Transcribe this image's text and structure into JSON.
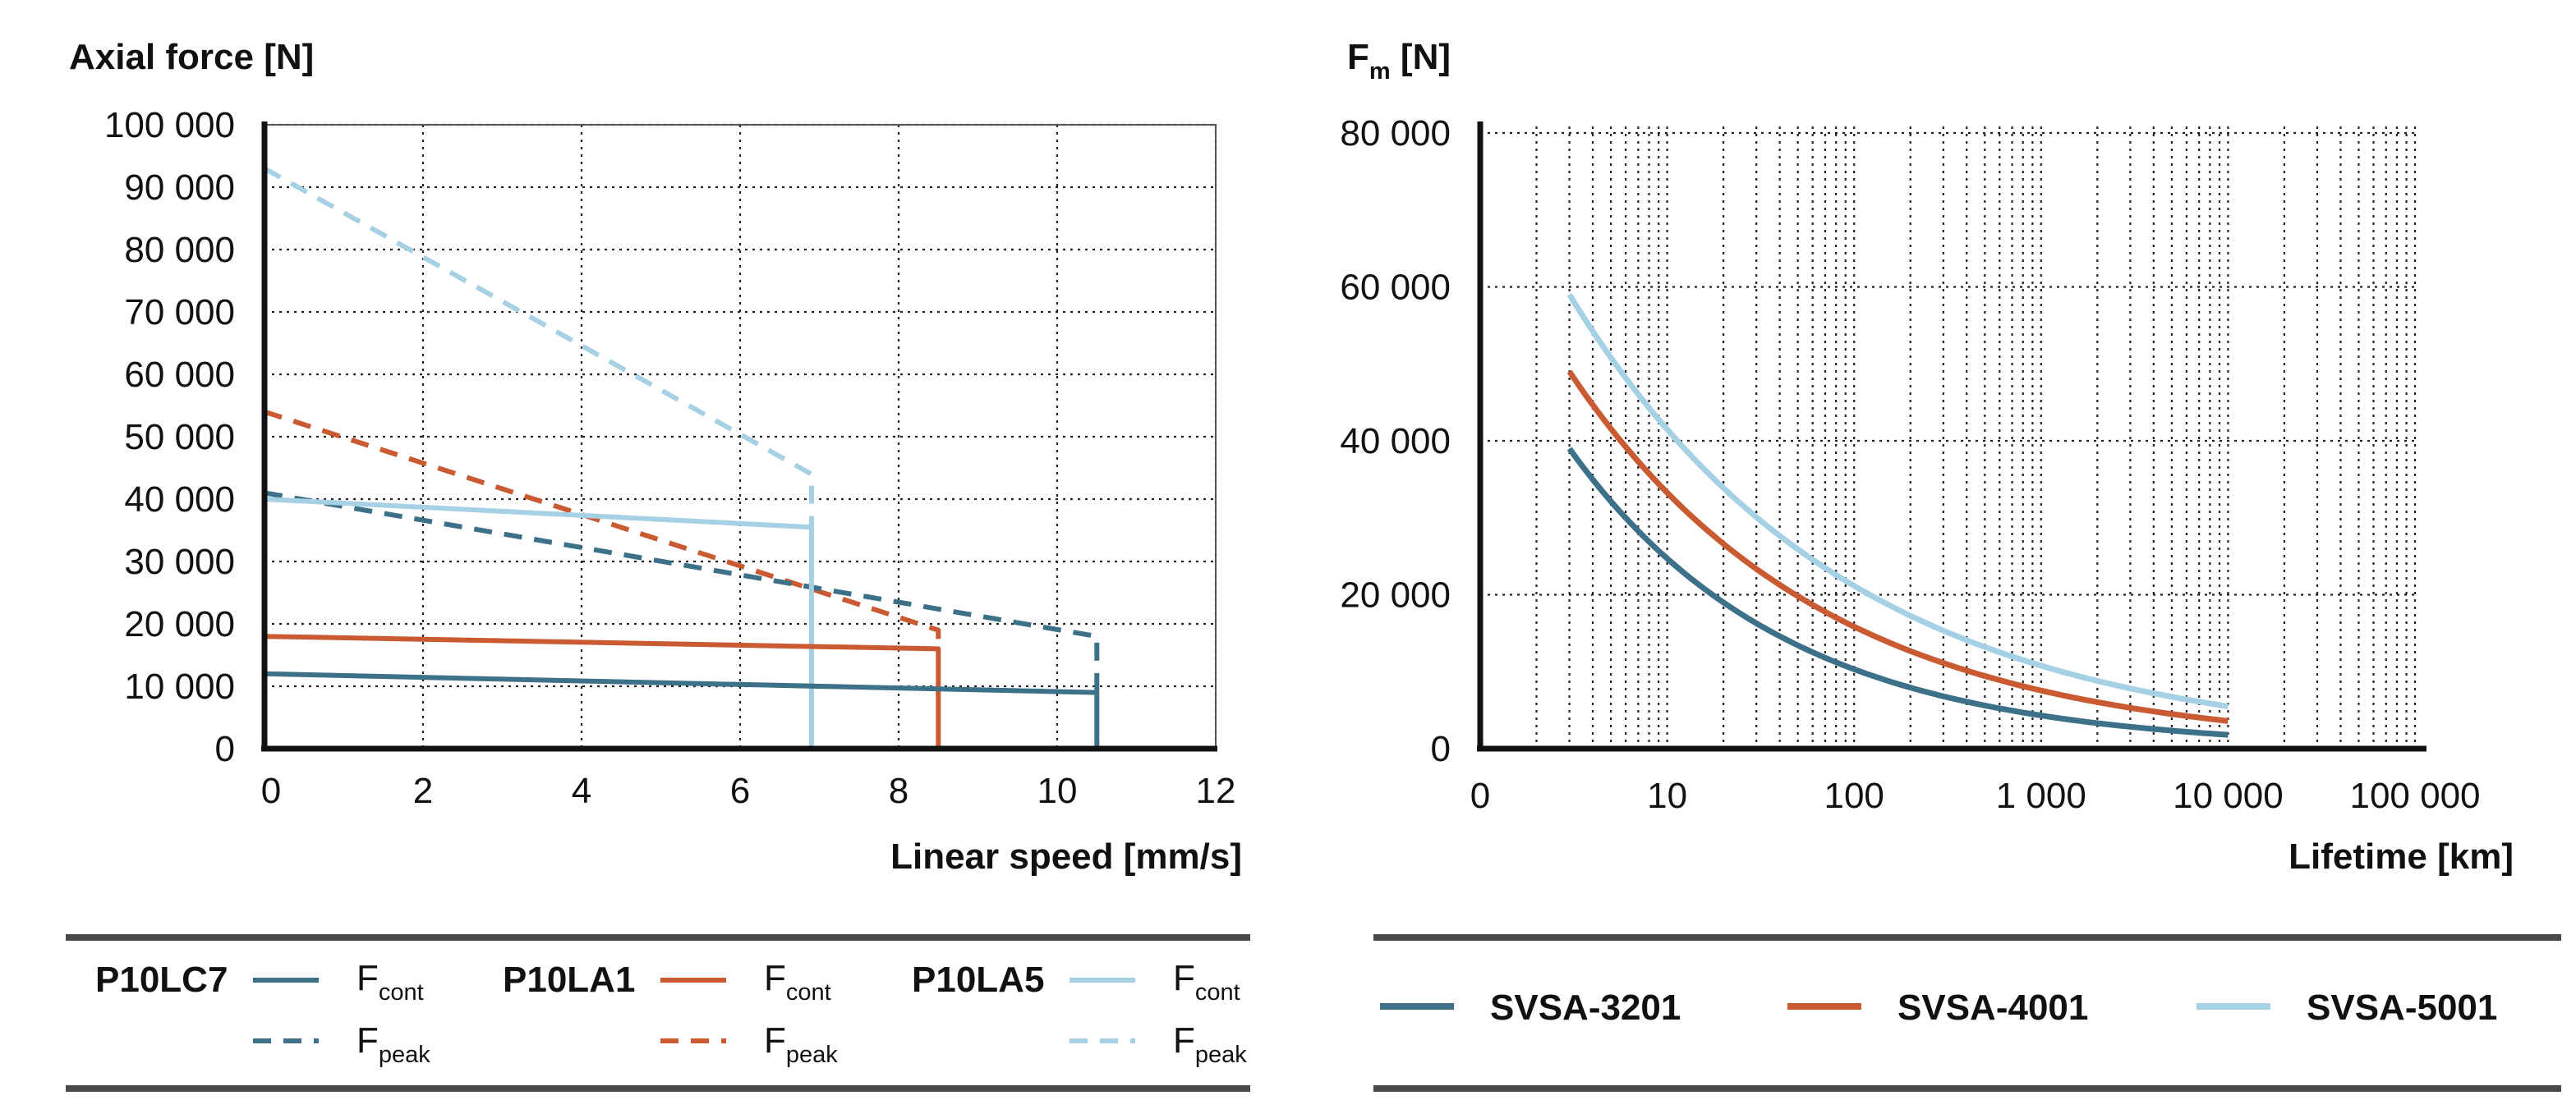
{
  "left_chart": {
    "title": "Axial force [N]",
    "xlabel": "Linear speed [mm/s]",
    "x_ticks": [
      "0",
      "2",
      "4",
      "6",
      "8",
      "10",
      "12"
    ],
    "y_ticks": [
      "0",
      "10 000",
      "20 000",
      "30 000",
      "40 000",
      "50 000",
      "60 000",
      "70 000",
      "80 000",
      "90 000",
      "100 000"
    ],
    "legend": [
      {
        "group": "P10LC7",
        "cont_main": "F",
        "cont_sub": "cont",
        "peak_main": "F",
        "peak_sub": "peak"
      },
      {
        "group": "P10LA1",
        "cont_main": "F",
        "cont_sub": "cont",
        "peak_main": "F",
        "peak_sub": "peak"
      },
      {
        "group": "P10LA5",
        "cont_main": "F",
        "cont_sub": "cont",
        "peak_main": "F",
        "peak_sub": "peak"
      }
    ]
  },
  "right_chart": {
    "title_main": "F",
    "title_sub": "m",
    "title_unit": " [N]",
    "xlabel": "Lifetime [km]",
    "x_ticks": [
      "0",
      "10",
      "100",
      "1 000",
      "10 000",
      "100 000"
    ],
    "y_ticks": [
      "0",
      "20 000",
      "40 000",
      "60 000",
      "80 000"
    ],
    "legend": [
      "SVSA-3201",
      "SVSA-4001",
      "SVSA-5001"
    ]
  },
  "colors": {
    "dark_blue": "#3d7189",
    "orange": "#c95a32",
    "light_blue": "#a6d0e3"
  },
  "chart_data": [
    {
      "type": "line",
      "title": "Axial force [N]",
      "xlabel": "Linear speed [mm/s]",
      "ylabel": "Axial force [N]",
      "xlim": [
        0,
        12
      ],
      "ylim": [
        0,
        100000
      ],
      "grid": true,
      "series": [
        {
          "name": "P10LC7 Fcont",
          "color": "#3d7189",
          "style": "solid",
          "x": [
            0,
            10.5,
            10.5
          ],
          "y": [
            12000,
            9000,
            0
          ]
        },
        {
          "name": "P10LC7 Fpeak",
          "color": "#3d7189",
          "style": "dashed",
          "x": [
            0,
            10.5,
            10.5
          ],
          "y": [
            41000,
            18000,
            9000
          ]
        },
        {
          "name": "P10LA1 Fcont",
          "color": "#c95a32",
          "style": "solid",
          "x": [
            0,
            8.5,
            8.5
          ],
          "y": [
            18000,
            16000,
            0
          ]
        },
        {
          "name": "P10LA1 Fpeak",
          "color": "#c95a32",
          "style": "dashed",
          "x": [
            0,
            8.5,
            8.5
          ],
          "y": [
            54000,
            19000,
            16000
          ]
        },
        {
          "name": "P10LA5 Fcont",
          "color": "#a6d0e3",
          "style": "solid",
          "x": [
            0,
            6.9,
            6.9
          ],
          "y": [
            40000,
            35500,
            0
          ]
        },
        {
          "name": "P10LA5 Fpeak",
          "color": "#a6d0e3",
          "style": "dashed",
          "x": [
            0,
            6.9,
            6.9
          ],
          "y": [
            93000,
            44000,
            35500
          ]
        }
      ]
    },
    {
      "type": "line",
      "title": "Fm [N]",
      "xlabel": "Lifetime [km]",
      "ylabel": "Fm [N]",
      "xscale": "log",
      "xlim": [
        1,
        100000
      ],
      "ylim": [
        0,
        80000
      ],
      "grid": true,
      "series": [
        {
          "name": "SVSA-3201",
          "color": "#3d7189",
          "x": [
            3,
            10000
          ],
          "y": [
            39000,
            1800
          ]
        },
        {
          "name": "SVSA-4001",
          "color": "#c95a32",
          "x": [
            3,
            10000
          ],
          "y": [
            49000,
            3600
          ]
        },
        {
          "name": "SVSA-5001",
          "color": "#a6d0e3",
          "x": [
            3,
            10000
          ],
          "y": [
            59000,
            5500
          ]
        }
      ]
    }
  ]
}
